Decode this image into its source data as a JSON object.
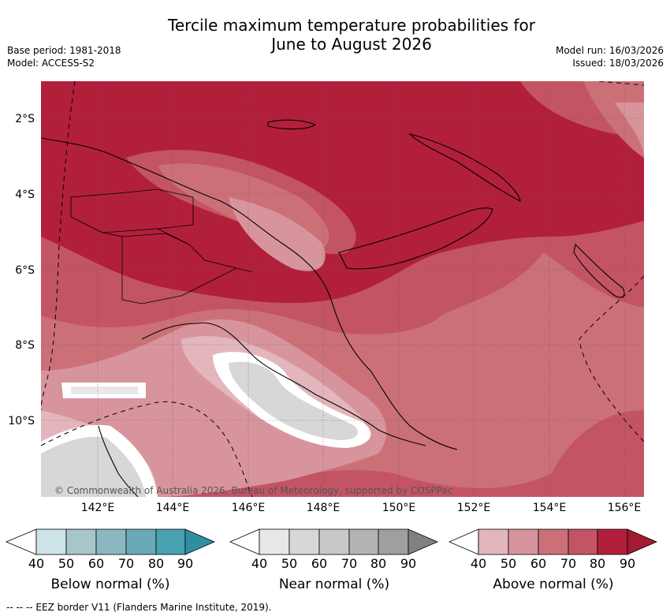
{
  "title_line1": "Tercile maximum temperature probabilities for",
  "title_line2": "June to August 2026",
  "base_period": "Base period: 1981-2018",
  "model": "Model: ACCESS-S2",
  "model_run": "Model run: 16/03/2026",
  "issued": "Issued: 18/03/2026",
  "lat_labels": [
    "2°S",
    "4°S",
    "6°S",
    "8°S",
    "10°S"
  ],
  "lon_labels": [
    "142°E",
    "144°E",
    "146°E",
    "148°E",
    "150°E",
    "152°E",
    "154°E",
    "156°E"
  ],
  "copyright": "© Commonwealth of Australia 2026, Bureau of Meteorology, supported by COSPPac",
  "legends": [
    {
      "title": "Below normal (%)",
      "ticks": [
        "40",
        "50",
        "60",
        "70",
        "80",
        "90"
      ],
      "colors": [
        "#cce3e7",
        "#a7c6cb",
        "#8bb8c0",
        "#6aa9b7",
        "#48a0b1",
        "#2f8fa1"
      ]
    },
    {
      "title": "Near normal (%)",
      "ticks": [
        "40",
        "50",
        "60",
        "70",
        "80",
        "90"
      ],
      "colors": [
        "#e8e8e8",
        "#d7d7d7",
        "#c8c8c8",
        "#b4b4b4",
        "#9f9f9f",
        "#808080"
      ]
    },
    {
      "title": "Above normal (%)",
      "ticks": [
        "40",
        "50",
        "60",
        "70",
        "80",
        "90"
      ],
      "colors": [
        "#e2b6bc",
        "#d8949c",
        "#cc7077",
        "#c35463",
        "#b21f3b",
        "#a31a33"
      ]
    }
  ],
  "footnote": "--  --  -- EEZ border V11 (Flanders Marine Institute, 2019)."
}
